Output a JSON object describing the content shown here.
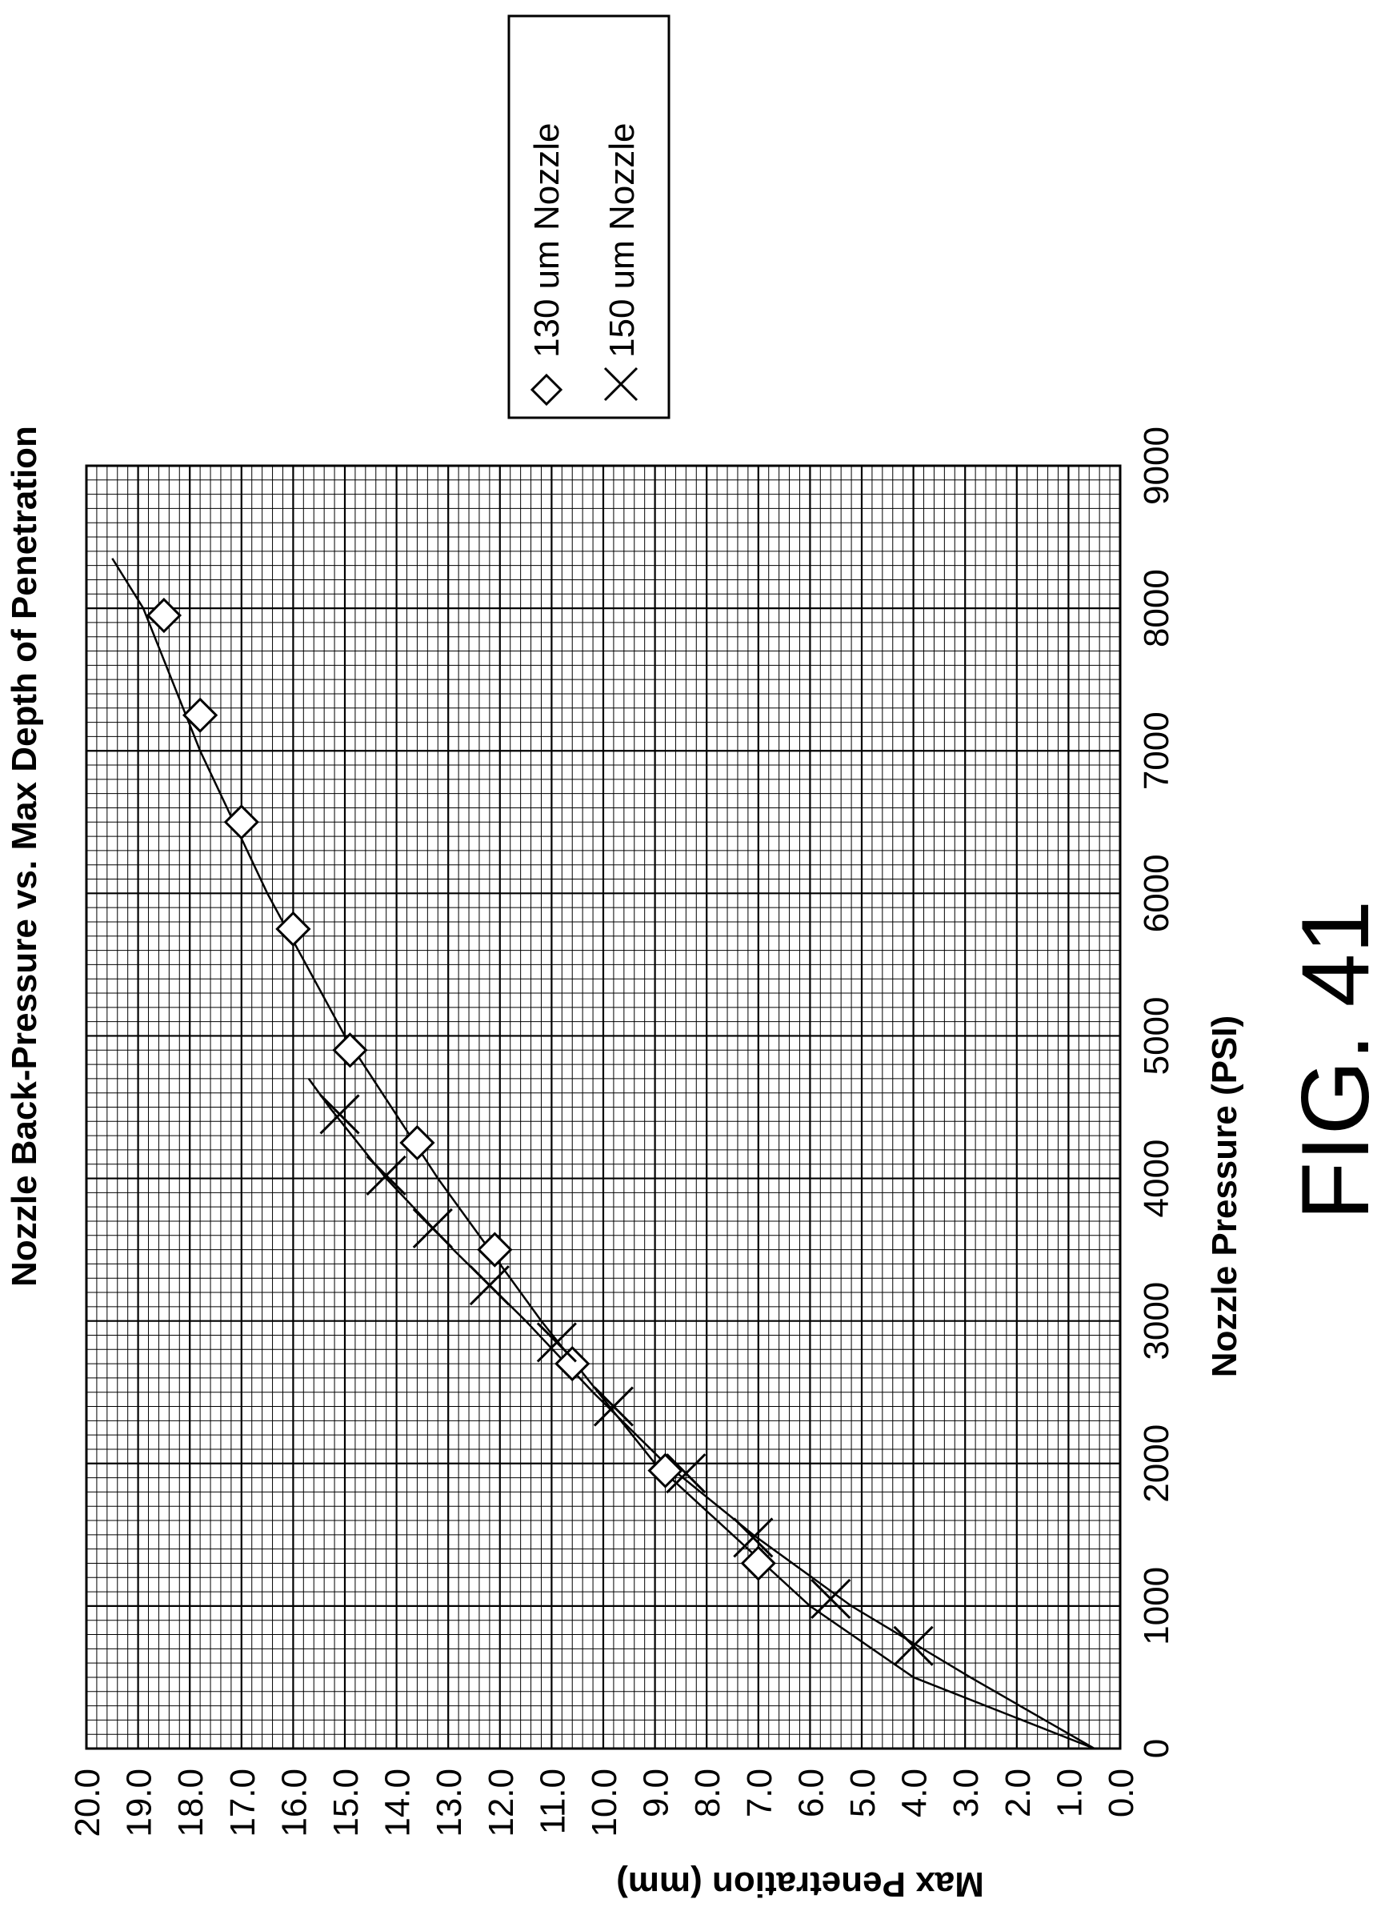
{
  "figure_caption": "FIG. 41",
  "chart_data": {
    "type": "scatter",
    "title": "Nozzle Back-Pressure vs. Max Depth of Penetration",
    "xlabel": "Nozzle Pressure (PSI)",
    "ylabel": "Max Penetration (mm)",
    "xlim": [
      0,
      9000
    ],
    "ylim": [
      0.0,
      20.0
    ],
    "x_ticks": [
      "0",
      "1000",
      "2000",
      "3000",
      "4000",
      "5000",
      "6000",
      "7000",
      "8000",
      "9000"
    ],
    "y_ticks": [
      "0.0",
      "1.0",
      "2.0",
      "3.0",
      "4.0",
      "5.0",
      "6.0",
      "7.0",
      "8.0",
      "9.0",
      "10.0",
      "11.0",
      "12.0",
      "13.0",
      "14.0",
      "15.0",
      "16.0",
      "17.0",
      "18.0",
      "19.0",
      "20.0"
    ],
    "grid": true,
    "legend_position": "top-right",
    "series": [
      {
        "name": "130 um Nozzle",
        "marker": "diamond",
        "x": [
          1300,
          1950,
          2700,
          3500,
          4250,
          4900,
          5750,
          6500,
          7250,
          7950
        ],
        "y": [
          7.0,
          8.8,
          10.6,
          12.1,
          13.6,
          14.9,
          16.0,
          17.0,
          17.8,
          18.5
        ],
        "fit_x": [
          0,
          500,
          1000,
          2000,
          3000,
          4000,
          5000,
          6000,
          7000,
          8000,
          8350
        ],
        "fit_y": [
          0.5,
          4.0,
          6.0,
          9.0,
          11.2,
          13.2,
          15.0,
          16.5,
          17.8,
          18.9,
          19.5
        ]
      },
      {
        "name": "150 um Nozzle",
        "marker": "x",
        "x": [
          720,
          1050,
          1480,
          1930,
          2400,
          2850,
          3250,
          3650,
          4020,
          4450
        ],
        "y": [
          4.0,
          5.6,
          7.1,
          8.4,
          9.8,
          10.9,
          12.2,
          13.3,
          14.2,
          15.1
        ],
        "fit_x": [
          0,
          500,
          1000,
          1500,
          2000,
          2500,
          3000,
          3500,
          4000,
          4500,
          4700
        ],
        "fit_y": [
          0.5,
          2.9,
          5.2,
          7.1,
          8.8,
          10.2,
          11.5,
          12.9,
          14.2,
          15.3,
          15.7
        ]
      }
    ]
  }
}
